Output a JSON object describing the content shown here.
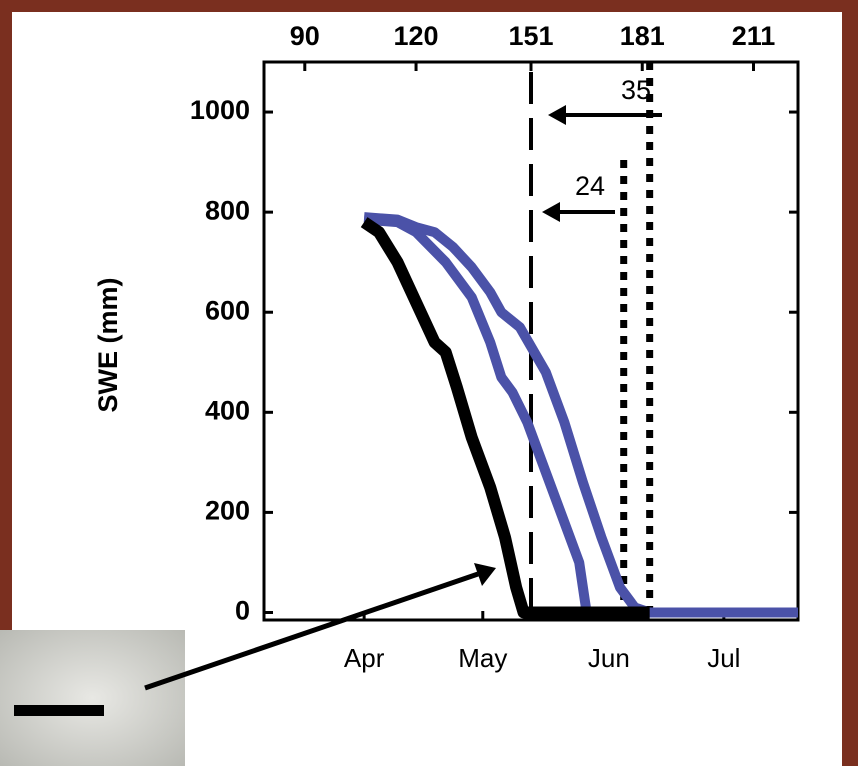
{
  "chart_data": {
    "type": "line",
    "y_label": "SWE (mm)",
    "xlim": [
      79,
      223
    ],
    "ylim": [
      -15,
      1100
    ],
    "xticks": [
      90,
      120,
      151,
      181,
      211
    ],
    "bottom_ticks": [
      {
        "value": 106,
        "label": "Apr"
      },
      {
        "value": 138,
        "label": "May"
      },
      {
        "value": 172,
        "label": "Jun"
      },
      {
        "value": 203,
        "label": "Jul"
      }
    ],
    "yticks": [
      0,
      200,
      400,
      600,
      800,
      1000
    ],
    "series": [
      {
        "color": "#4b52a8",
        "x": [
          106,
          115,
          120,
          125,
          130,
          135,
          140,
          143,
          148,
          155,
          160,
          165,
          170,
          175,
          179,
          183,
          223
        ],
        "values": [
          790,
          785,
          770,
          760,
          730,
          690,
          640,
          600,
          570,
          480,
          380,
          260,
          150,
          50,
          10,
          0,
          0
        ]
      },
      {
        "color": "#4b52a8",
        "x": [
          106,
          115,
          120,
          128,
          135,
          140,
          143,
          146,
          150,
          155,
          160,
          164,
          166,
          172,
          223
        ],
        "values": [
          785,
          780,
          760,
          700,
          630,
          540,
          470,
          440,
          380,
          280,
          180,
          100,
          0,
          0,
          0
        ]
      },
      {
        "color": "#000000",
        "x": [
          106,
          110,
          115,
          120,
          125,
          128,
          131,
          135,
          140,
          144,
          147,
          149,
          152,
          183
        ],
        "values": [
          780,
          760,
          700,
          620,
          540,
          520,
          450,
          350,
          250,
          150,
          50,
          0,
          0,
          0
        ]
      }
    ],
    "vlines": [
      {
        "x": 151,
        "style": "dashed"
      },
      {
        "x": 176,
        "style": "dotted"
      },
      {
        "x": 183,
        "style": "dotted"
      }
    ],
    "annotations": [
      "35",
      "24"
    ]
  }
}
